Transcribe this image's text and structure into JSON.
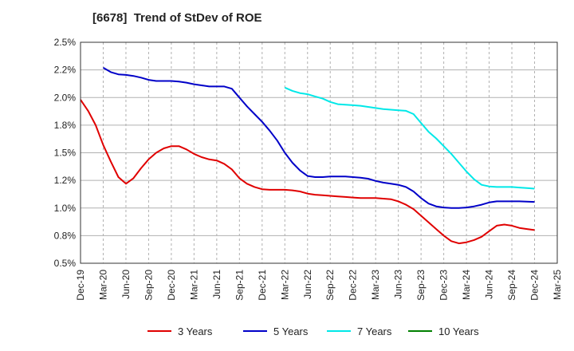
{
  "chart_data": {
    "type": "line",
    "title": "[6678]  Trend of StDev of ROE",
    "xlabel": "",
    "ylabel": "",
    "x_ticks": [
      "Dec-19",
      "Mar-20",
      "Jun-20",
      "Sep-20",
      "Dec-20",
      "Mar-21",
      "Jun-21",
      "Sep-21",
      "Dec-21",
      "Mar-22",
      "Jun-22",
      "Sep-22",
      "Dec-22",
      "Mar-23",
      "Jun-23",
      "Sep-23",
      "Dec-23",
      "Mar-24",
      "Jun-24",
      "Sep-24",
      "Dec-24",
      "Mar-25"
    ],
    "y_ticks": [
      "0.5%",
      "0.8%",
      "1.0%",
      "1.2%",
      "1.5%",
      "1.8%",
      "2.0%",
      "2.2%",
      "2.5%"
    ],
    "ylim": [
      0.5,
      2.5
    ],
    "y_unit": "%",
    "grid": "vertical dashed, horizontal solid",
    "legend_position": "bottom",
    "series": [
      {
        "name": "3 Years",
        "color": "#e00000",
        "points": [
          [
            "Dec-19",
            1.98
          ],
          [
            "Jan-20",
            1.88
          ],
          [
            "Feb-20",
            1.75
          ],
          [
            "Mar-20",
            1.57
          ],
          [
            "Apr-20",
            1.42
          ],
          [
            "May-20",
            1.28
          ],
          [
            "Jun-20",
            1.22
          ],
          [
            "Jul-20",
            1.27
          ],
          [
            "Aug-20",
            1.36
          ],
          [
            "Sep-20",
            1.44
          ],
          [
            "Oct-20",
            1.5
          ],
          [
            "Nov-20",
            1.54
          ],
          [
            "Dec-20",
            1.56
          ],
          [
            "Jan-21",
            1.56
          ],
          [
            "Feb-21",
            1.53
          ],
          [
            "Mar-21",
            1.49
          ],
          [
            "Apr-21",
            1.46
          ],
          [
            "May-21",
            1.44
          ],
          [
            "Jun-21",
            1.43
          ],
          [
            "Jul-21",
            1.4
          ],
          [
            "Aug-21",
            1.35
          ],
          [
            "Sep-21",
            1.27
          ],
          [
            "Oct-21",
            1.22
          ],
          [
            "Nov-21",
            1.19
          ],
          [
            "Dec-21",
            1.17
          ],
          [
            "Jan-22",
            1.165
          ],
          [
            "Feb-22",
            1.165
          ],
          [
            "Mar-22",
            1.165
          ],
          [
            "Apr-22",
            1.16
          ],
          [
            "May-22",
            1.15
          ],
          [
            "Jun-22",
            1.13
          ],
          [
            "Jul-22",
            1.12
          ],
          [
            "Aug-22",
            1.115
          ],
          [
            "Sep-22",
            1.11
          ],
          [
            "Oct-22",
            1.105
          ],
          [
            "Nov-22",
            1.1
          ],
          [
            "Dec-22",
            1.095
          ],
          [
            "Jan-23",
            1.09
          ],
          [
            "Feb-23",
            1.09
          ],
          [
            "Mar-23",
            1.09
          ],
          [
            "Apr-23",
            1.085
          ],
          [
            "May-23",
            1.08
          ],
          [
            "Jun-23",
            1.06
          ],
          [
            "Jul-23",
            1.03
          ],
          [
            "Aug-23",
            0.99
          ],
          [
            "Sep-23",
            0.93
          ],
          [
            "Oct-23",
            0.87
          ],
          [
            "Nov-23",
            0.81
          ],
          [
            "Dec-23",
            0.75
          ],
          [
            "Jan-24",
            0.7
          ],
          [
            "Feb-24",
            0.68
          ],
          [
            "Mar-24",
            0.69
          ],
          [
            "Apr-24",
            0.71
          ],
          [
            "May-24",
            0.74
          ],
          [
            "Jun-24",
            0.79
          ],
          [
            "Jul-24",
            0.84
          ],
          [
            "Aug-24",
            0.85
          ],
          [
            "Sep-24",
            0.84
          ],
          [
            "Oct-24",
            0.82
          ],
          [
            "Nov-24",
            0.81
          ],
          [
            "Dec-24",
            0.8
          ]
        ]
      },
      {
        "name": "5 Years",
        "color": "#0000c8",
        "points": [
          [
            "Mar-20",
            2.27
          ],
          [
            "Apr-20",
            2.23
          ],
          [
            "May-20",
            2.21
          ],
          [
            "Jun-20",
            2.205
          ],
          [
            "Jul-20",
            2.195
          ],
          [
            "Aug-20",
            2.18
          ],
          [
            "Sep-20",
            2.16
          ],
          [
            "Oct-20",
            2.15
          ],
          [
            "Nov-20",
            2.15
          ],
          [
            "Dec-20",
            2.15
          ],
          [
            "Jan-21",
            2.145
          ],
          [
            "Feb-21",
            2.135
          ],
          [
            "Mar-21",
            2.12
          ],
          [
            "Apr-21",
            2.11
          ],
          [
            "May-21",
            2.1
          ],
          [
            "Jun-21",
            2.1
          ],
          [
            "Jul-21",
            2.1
          ],
          [
            "Aug-21",
            2.08
          ],
          [
            "Sep-21",
            2.0
          ],
          [
            "Oct-21",
            1.92
          ],
          [
            "Nov-21",
            1.85
          ],
          [
            "Dec-21",
            1.78
          ],
          [
            "Jan-22",
            1.7
          ],
          [
            "Feb-22",
            1.61
          ],
          [
            "Mar-22",
            1.5
          ],
          [
            "Apr-22",
            1.41
          ],
          [
            "May-22",
            1.34
          ],
          [
            "Jun-22",
            1.29
          ],
          [
            "Jul-22",
            1.28
          ],
          [
            "Aug-22",
            1.28
          ],
          [
            "Sep-22",
            1.285
          ],
          [
            "Oct-22",
            1.285
          ],
          [
            "Nov-22",
            1.285
          ],
          [
            "Dec-22",
            1.28
          ],
          [
            "Jan-23",
            1.275
          ],
          [
            "Feb-23",
            1.265
          ],
          [
            "Mar-23",
            1.245
          ],
          [
            "Apr-23",
            1.23
          ],
          [
            "May-23",
            1.22
          ],
          [
            "Jun-23",
            1.21
          ],
          [
            "Jul-23",
            1.19
          ],
          [
            "Aug-23",
            1.15
          ],
          [
            "Sep-23",
            1.09
          ],
          [
            "Oct-23",
            1.04
          ],
          [
            "Nov-23",
            1.015
          ],
          [
            "Dec-23",
            1.005
          ],
          [
            "Jan-24",
            1.0
          ],
          [
            "Feb-24",
            1.0
          ],
          [
            "Mar-24",
            1.005
          ],
          [
            "Apr-24",
            1.015
          ],
          [
            "May-24",
            1.03
          ],
          [
            "Jun-24",
            1.05
          ],
          [
            "Jul-24",
            1.06
          ],
          [
            "Aug-24",
            1.06
          ],
          [
            "Sep-24",
            1.06
          ],
          [
            "Oct-24",
            1.06
          ],
          [
            "Nov-24",
            1.058
          ],
          [
            "Dec-24",
            1.055
          ]
        ]
      },
      {
        "name": "7 Years",
        "color": "#00e8e8",
        "points": [
          [
            "Mar-22",
            2.09
          ],
          [
            "Apr-22",
            2.06
          ],
          [
            "May-22",
            2.04
          ],
          [
            "Jun-22",
            2.03
          ],
          [
            "Jul-22",
            2.01
          ],
          [
            "Aug-22",
            1.99
          ],
          [
            "Sep-22",
            1.96
          ],
          [
            "Oct-22",
            1.94
          ],
          [
            "Nov-22",
            1.935
          ],
          [
            "Dec-22",
            1.93
          ],
          [
            "Jan-23",
            1.925
          ],
          [
            "Feb-23",
            1.915
          ],
          [
            "Mar-23",
            1.905
          ],
          [
            "Apr-23",
            1.895
          ],
          [
            "May-23",
            1.89
          ],
          [
            "Jun-23",
            1.885
          ],
          [
            "Jul-23",
            1.88
          ],
          [
            "Aug-23",
            1.85
          ],
          [
            "Sep-23",
            1.77
          ],
          [
            "Oct-23",
            1.69
          ],
          [
            "Nov-23",
            1.63
          ],
          [
            "Dec-23",
            1.56
          ],
          [
            "Jan-24",
            1.49
          ],
          [
            "Feb-24",
            1.41
          ],
          [
            "Mar-24",
            1.33
          ],
          [
            "Apr-24",
            1.26
          ],
          [
            "May-24",
            1.21
          ],
          [
            "Jun-24",
            1.195
          ],
          [
            "Jul-24",
            1.19
          ],
          [
            "Aug-24",
            1.19
          ],
          [
            "Sep-24",
            1.19
          ],
          [
            "Oct-24",
            1.185
          ],
          [
            "Nov-24",
            1.18
          ],
          [
            "Dec-24",
            1.175
          ]
        ]
      },
      {
        "name": "10 Years",
        "color": "#008000",
        "points": []
      }
    ]
  }
}
